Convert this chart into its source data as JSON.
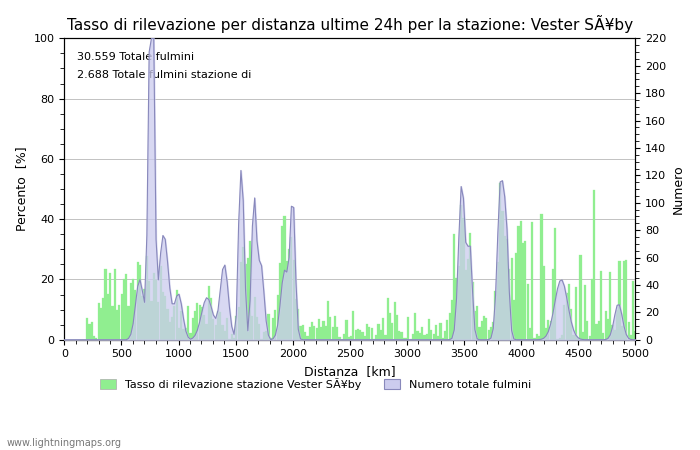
{
  "title": "Tasso di rilevazione per distanza ultime 24h per la stazione: Vester SÃ¥by",
  "xlabel": "Distanza  [km]",
  "ylabel_left": "Percento  [%]",
  "ylabel_right": "Numero",
  "annotation_line1": "30.559 Totale fulmini",
  "annotation_line2": "2.688 Totale fulmini stazione di",
  "legend_label_green": "Tasso di rilevazione stazione Vester SÃ¥by",
  "legend_label_blue": "Numero totale fulmini",
  "watermark": "www.lightningmaps.org",
  "xlim": [
    0,
    5000
  ],
  "ylim_left": [
    0,
    100
  ],
  "ylim_right": [
    0,
    220
  ],
  "xticks": [
    0,
    500,
    1000,
    1500,
    2000,
    2500,
    3000,
    3500,
    4000,
    4500,
    5000
  ],
  "yticks_left": [
    0,
    20,
    40,
    60,
    80,
    100
  ],
  "yticks_right": [
    0,
    20,
    40,
    60,
    80,
    100,
    120,
    140,
    160,
    180,
    200,
    220
  ],
  "bar_color": "#90ee90",
  "line_color": "#8888bb",
  "fill_color": "#ccccee",
  "grid_color": "#aaaaaa",
  "bg_color": "#ffffff",
  "title_fontsize": 11,
  "label_fontsize": 9,
  "tick_fontsize": 8,
  "annotation_fontsize": 8,
  "figwidth": 7.0,
  "figheight": 4.5,
  "dpi": 100
}
